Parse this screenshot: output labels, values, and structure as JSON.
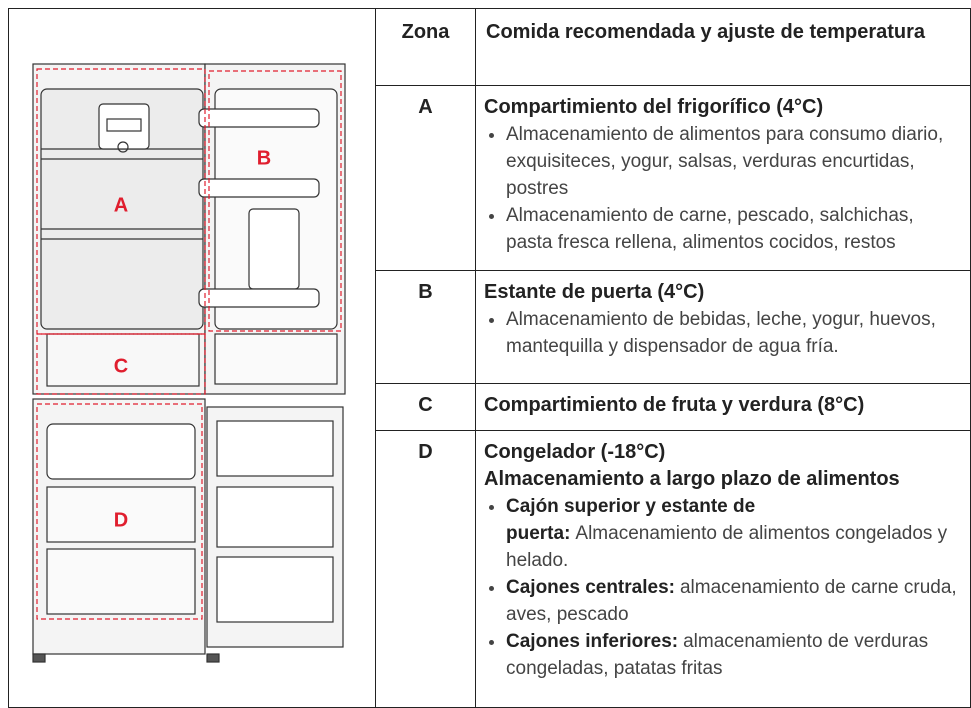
{
  "diagram": {
    "labels": [
      "A",
      "B",
      "C",
      "D"
    ]
  },
  "table": {
    "header": [
      "Zona",
      "Comida recomendada y ajuste de temperatura"
    ],
    "rows": [
      {
        "zone": "A",
        "title": "Compartimiento del frigorífico (4°C)",
        "items": [
          {
            "text": "Almacenamiento de alimentos para consumo diario, exquisiteces, yogur, salsas, verduras encurtidas, postres"
          },
          {
            "text": "Almacenamiento de carne, pescado, salchichas, pasta fresca rellena, alimentos cocidos, restos"
          }
        ]
      },
      {
        "zone": "B",
        "title": "Estante de puerta (4°C)",
        "items": [
          {
            "text": "Almacenamiento de bebidas, leche, yogur, huevos, mantequilla y dispensador de agua fría."
          }
        ]
      },
      {
        "zone": "C",
        "title": "Compartimiento de fruta y verdura (8°C)",
        "items": []
      },
      {
        "zone": "D",
        "title": "Congelador (-18°C)",
        "subtitle": "Almacenamiento a largo plazo de alimentos",
        "items": [
          {
            "bold": "Cajón superior y estante de puerta:",
            "text": "Almacenamiento de alimentos congelados y helado."
          },
          {
            "bold": "Cajones centrales:",
            "text": "almacenamiento de carne cruda, aves, pescado"
          },
          {
            "bold": "Cajones inferiores:",
            "text": "almacenamiento de verduras congeladas, patatas fritas"
          }
        ]
      }
    ]
  }
}
